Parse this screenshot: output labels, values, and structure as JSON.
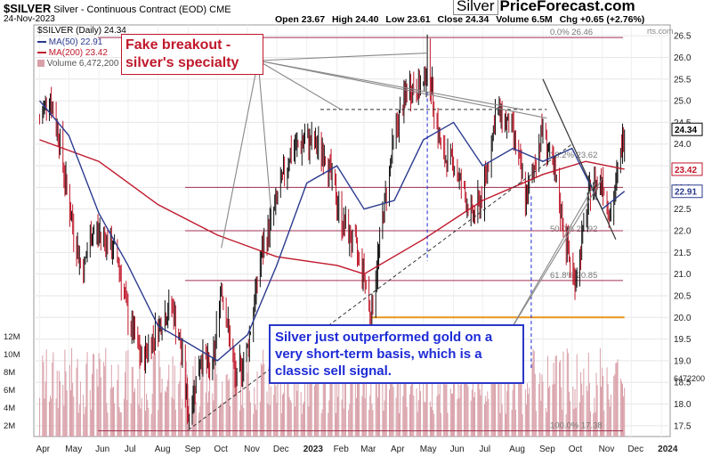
{
  "header": {
    "symbol": "$SILVER",
    "description": "Silver - Continuous Contract (EOD)",
    "exchange": "CME",
    "date": "24-Nov-2023",
    "open": "Open 23.67",
    "high": "High 24.40",
    "low": "Low 23.61",
    "close": "Close 24.34",
    "volume": "Volume 6.5M",
    "change": "Chg +0.65 (+2.76%)",
    "title_line": "$SILVER (Daily) 24.34",
    "watermark_tail": "rts.com"
  },
  "brand": {
    "prefix": "Silver",
    "name": "PriceForecast.com"
  },
  "legend": {
    "ma50": "MA(50) 22.91",
    "ma200": "MA(200) 23.42",
    "volume": "Volume 6,472,200"
  },
  "colors": {
    "price_up": "#111111",
    "price_down": "#c0182b",
    "ma50": "#2b3a8f",
    "ma200": "#c0182b",
    "fib": "#a03050",
    "support": "#e8961e",
    "annotation_blue": "#1d2bd6",
    "annotation_red": "#c0182b",
    "volume": "#d9a0a8"
  },
  "annotations": {
    "fake_breakout": "Fake breakout - silver's specialty",
    "sell_signal": "Silver just outperformed gold on a very short-term basis, which is a classic sell signal."
  },
  "chart_data": {
    "type": "candlestick",
    "series_name": "$SILVER",
    "y_axis": {
      "min": 17.25,
      "max": 26.75,
      "ticks": [
        17.5,
        18.0,
        18.5,
        19.0,
        19.5,
        20.0,
        20.5,
        21.0,
        21.5,
        22.0,
        22.5,
        23.0,
        23.5,
        24.0,
        24.5,
        25.0,
        25.5,
        26.0,
        26.5
      ]
    },
    "price_tags": [
      "24.34",
      "23.42",
      "22.91"
    ],
    "volume_axis": {
      "ticks": [
        "2M",
        "4M",
        "6M",
        "8M",
        "10M",
        "12M"
      ],
      "last_tag": "6472200"
    },
    "x_labels": [
      "Apr",
      "May",
      "Jun",
      "Jul",
      "Aug",
      "Sep",
      "Oct",
      "Nov",
      "Dec",
      "2023",
      "Feb",
      "Mar",
      "Apr",
      "May",
      "Jun",
      "Jul",
      "Aug",
      "Sep",
      "Oct",
      "Nov",
      "Dec",
      "2024"
    ],
    "fib_levels": [
      {
        "value": 26.46,
        "label": "0.0% 26.46"
      },
      {
        "value": 23.62,
        "label": "38.2% 23.62"
      },
      {
        "value": 21.92,
        "label": "50.0% 21.92"
      },
      {
        "value": 20.85,
        "label": "61.8% 20.85"
      },
      {
        "value": 17.38,
        "label": "100.0% 17.38"
      }
    ],
    "horizontal_lines": [
      23.0,
      22.0,
      20.85
    ],
    "support_line": 20.0,
    "resistance_line": 24.8,
    "price_path": [
      [
        "2022-04-01",
        24.5
      ],
      [
        "2022-04-10",
        25.2
      ],
      [
        "2022-04-20",
        24.3
      ],
      [
        "2022-05-01",
        22.6
      ],
      [
        "2022-05-15",
        21.0
      ],
      [
        "2022-05-25",
        22.0
      ],
      [
        "2022-06-05",
        21.9
      ],
      [
        "2022-06-20",
        21.4
      ],
      [
        "2022-07-01",
        20.0
      ],
      [
        "2022-07-15",
        19.0
      ],
      [
        "2022-08-01",
        19.8
      ],
      [
        "2022-08-15",
        20.3
      ],
      [
        "2022-08-25",
        19.2
      ],
      [
        "2022-09-01",
        17.7
      ],
      [
        "2022-09-15",
        19.2
      ],
      [
        "2022-09-25",
        18.6
      ],
      [
        "2022-10-05",
        20.8
      ],
      [
        "2022-10-20",
        18.5
      ],
      [
        "2022-11-01",
        19.3
      ],
      [
        "2022-11-15",
        21.4
      ],
      [
        "2022-12-01",
        22.7
      ],
      [
        "2022-12-15",
        23.8
      ],
      [
        "2023-01-01",
        24.1
      ],
      [
        "2023-01-20",
        23.8
      ],
      [
        "2023-02-05",
        22.3
      ],
      [
        "2023-02-20",
        21.6
      ],
      [
        "2023-03-01",
        21.0
      ],
      [
        "2023-03-08",
        20.0
      ],
      [
        "2023-03-20",
        22.3
      ],
      [
        "2023-04-01",
        24.2
      ],
      [
        "2023-04-15",
        25.3
      ],
      [
        "2023-05-01",
        25.3
      ],
      [
        "2023-05-05",
        26.0
      ],
      [
        "2023-05-20",
        23.7
      ],
      [
        "2023-06-01",
        23.6
      ],
      [
        "2023-06-20",
        22.3
      ],
      [
        "2023-07-01",
        22.8
      ],
      [
        "2023-07-15",
        24.8
      ],
      [
        "2023-08-01",
        24.3
      ],
      [
        "2023-08-15",
        22.7
      ],
      [
        "2023-09-01",
        24.4
      ],
      [
        "2023-09-15",
        23.0
      ],
      [
        "2023-10-01",
        21.0
      ],
      [
        "2023-10-05",
        20.9
      ],
      [
        "2023-10-20",
        23.0
      ],
      [
        "2023-11-01",
        23.2
      ],
      [
        "2023-11-10",
        22.3
      ],
      [
        "2023-11-24",
        24.34
      ]
    ],
    "ma50_path": [
      [
        "2022-04-01",
        25.0
      ],
      [
        "2022-05-01",
        24.2
      ],
      [
        "2022-06-01",
        22.4
      ],
      [
        "2022-07-01",
        21.2
      ],
      [
        "2022-08-01",
        19.8
      ],
      [
        "2022-09-01",
        19.4
      ],
      [
        "2022-10-01",
        19.0
      ],
      [
        "2022-11-01",
        19.6
      ],
      [
        "2022-12-01",
        21.2
      ],
      [
        "2023-01-01",
        23.1
      ],
      [
        "2023-02-01",
        23.5
      ],
      [
        "2023-03-01",
        22.5
      ],
      [
        "2023-04-01",
        22.7
      ],
      [
        "2023-05-01",
        24.1
      ],
      [
        "2023-06-01",
        24.5
      ],
      [
        "2023-07-01",
        23.5
      ],
      [
        "2023-08-01",
        23.9
      ],
      [
        "2023-09-01",
        23.6
      ],
      [
        "2023-10-01",
        23.9
      ],
      [
        "2023-11-01",
        22.5
      ],
      [
        "2023-11-24",
        22.91
      ]
    ],
    "ma200_path": [
      [
        "2022-04-01",
        24.1
      ],
      [
        "2022-06-01",
        23.6
      ],
      [
        "2022-08-01",
        22.6
      ],
      [
        "2022-10-01",
        21.9
      ],
      [
        "2022-12-01",
        21.4
      ],
      [
        "2023-02-01",
        21.2
      ],
      [
        "2023-03-01",
        21.0
      ],
      [
        "2023-05-01",
        21.8
      ],
      [
        "2023-07-01",
        22.7
      ],
      [
        "2023-09-01",
        23.3
      ],
      [
        "2023-10-15",
        23.6
      ],
      [
        "2023-11-24",
        23.42
      ]
    ]
  }
}
